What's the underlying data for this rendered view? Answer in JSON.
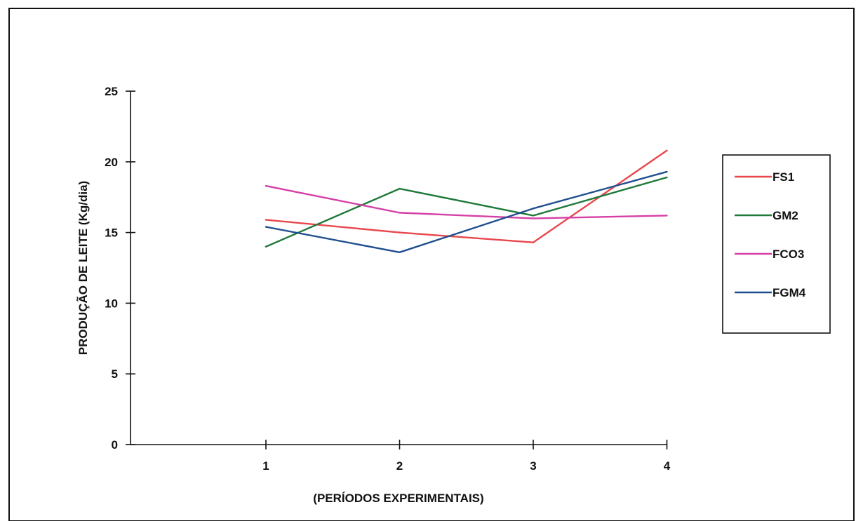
{
  "chart_data": {
    "type": "line",
    "title": "",
    "xlabel": "(PERÍODOS EXPERIMENTAIS)",
    "ylabel": "PRODUÇÃO DE LEITE (Kg/dia)",
    "categories": [
      "1",
      "2",
      "3",
      "4"
    ],
    "ylim": [
      0,
      25
    ],
    "yticks": [
      "0",
      "5",
      "10",
      "15",
      "20",
      "25"
    ],
    "grid": false,
    "legend_position": "right",
    "series": [
      {
        "name": "FS1",
        "color": "#e8474c",
        "values": [
          15.9,
          15.0,
          14.3,
          20.8
        ]
      },
      {
        "name": "GM2",
        "color": "#1f7a3a",
        "values": [
          14.0,
          18.1,
          16.2,
          18.9
        ]
      },
      {
        "name": "FCO3",
        "color": "#d63fa6",
        "values": [
          18.3,
          16.4,
          16.0,
          16.2
        ]
      },
      {
        "name": "FGM4",
        "color": "#1f4f8f",
        "values": [
          15.4,
          13.6,
          16.7,
          19.3
        ]
      }
    ]
  }
}
